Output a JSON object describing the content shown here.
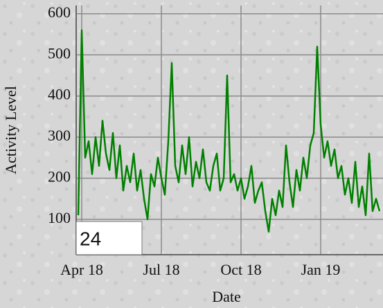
{
  "chart_data": {
    "type": "line",
    "xlabel": "Date",
    "ylabel": "Activity Level",
    "categories": [
      null,
      "Apr 18",
      null,
      null,
      null,
      null,
      null,
      null,
      null,
      null,
      null,
      null,
      null,
      null,
      null,
      null,
      null,
      null,
      null,
      null,
      null,
      null,
      null,
      null,
      "Jul 18",
      null,
      null,
      null,
      null,
      null,
      null,
      null,
      null,
      null,
      null,
      null,
      null,
      null,
      null,
      null,
      null,
      null,
      null,
      null,
      null,
      null,
      null,
      "Oct 18",
      null,
      null,
      null,
      null,
      null,
      null,
      null,
      null,
      null,
      null,
      null,
      null,
      null,
      null,
      null,
      null,
      null,
      null,
      null,
      null,
      null,
      null,
      "Jan 19",
      null,
      null,
      null,
      null,
      null,
      null,
      null,
      null,
      null,
      null,
      null,
      null,
      null,
      null,
      null,
      null,
      null
    ],
    "values": [
      110,
      560,
      250,
      290,
      210,
      300,
      230,
      340,
      260,
      220,
      310,
      200,
      280,
      170,
      230,
      190,
      260,
      170,
      220,
      150,
      100,
      210,
      180,
      250,
      200,
      160,
      290,
      480,
      230,
      190,
      280,
      210,
      300,
      180,
      240,
      200,
      270,
      190,
      170,
      230,
      260,
      170,
      200,
      450,
      190,
      210,
      170,
      200,
      150,
      180,
      230,
      140,
      170,
      190,
      120,
      70,
      150,
      110,
      170,
      130,
      280,
      190,
      130,
      220,
      170,
      250,
      200,
      280,
      310,
      520,
      330,
      250,
      290,
      230,
      270,
      200,
      230,
      160,
      200,
      140,
      240,
      130,
      180,
      110,
      260,
      120,
      150,
      120
    ],
    "color": "#008000",
    "ylim": [
      14,
      620
    ],
    "yticks": [
      100,
      200,
      300,
      400,
      500,
      600
    ],
    "grid": true
  },
  "textbox": "24"
}
